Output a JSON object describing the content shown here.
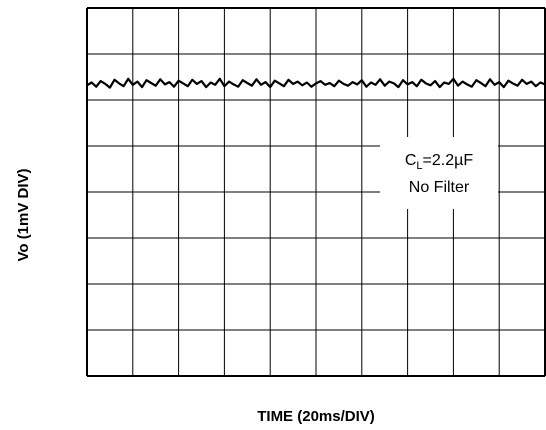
{
  "chart_data": {
    "type": "line",
    "title": "",
    "xlabel": "TIME (20ms/DIV)",
    "ylabel": "Vo (1mV DIV)",
    "x_divisions": 10,
    "y_divisions": 8,
    "xlim": [
      0,
      10
    ],
    "ylim": [
      0,
      8
    ],
    "grid": true,
    "annotation": {
      "line1_prefix": "C",
      "line1_sub": "L",
      "line1_value": "=2.2µF",
      "line2": "No Filter"
    },
    "series": [
      {
        "x": [
          0,
          0.1,
          0.2,
          0.3,
          0.4,
          0.5,
          0.6,
          0.7,
          0.8,
          0.9,
          1.0,
          1.1,
          1.2,
          1.3,
          1.4,
          1.5,
          1.6,
          1.7,
          1.8,
          1.9,
          2.0,
          2.1,
          2.2,
          2.3,
          2.4,
          2.5,
          2.6,
          2.7,
          2.8,
          2.9,
          3.0,
          3.1,
          3.2,
          3.3,
          3.4,
          3.5,
          3.6,
          3.7,
          3.8,
          3.9,
          4.0,
          4.1,
          4.2,
          4.3,
          4.4,
          4.5,
          4.6,
          4.7,
          4.8,
          4.9,
          5.0,
          5.1,
          5.2,
          5.3,
          5.4,
          5.5,
          5.6,
          5.7,
          5.8,
          5.9,
          6.0,
          6.1,
          6.2,
          6.3,
          6.4,
          6.5,
          6.6,
          6.7,
          6.8,
          6.9,
          7.0,
          7.1,
          7.2,
          7.3,
          7.4,
          7.5,
          7.6,
          7.7,
          7.8,
          7.9,
          8.0,
          8.1,
          8.2,
          8.3,
          8.4,
          8.5,
          8.6,
          8.7,
          8.8,
          8.9,
          9.0,
          9.1,
          9.2,
          9.3,
          9.4,
          9.5,
          9.6,
          9.7,
          9.8,
          9.9,
          10.0
        ],
        "values": [
          6.32,
          6.38,
          6.29,
          6.41,
          6.35,
          6.27,
          6.44,
          6.36,
          6.3,
          6.46,
          6.33,
          6.4,
          6.28,
          6.43,
          6.37,
          6.31,
          6.45,
          6.34,
          6.39,
          6.29,
          6.42,
          6.36,
          6.3,
          6.44,
          6.35,
          6.41,
          6.28,
          6.38,
          6.33,
          6.46,
          6.3,
          6.4,
          6.34,
          6.29,
          6.43,
          6.37,
          6.31,
          6.45,
          6.33,
          6.39,
          6.28,
          6.42,
          6.36,
          6.3,
          6.44,
          6.35,
          6.4,
          6.32,
          6.38,
          6.29,
          6.36,
          6.41,
          6.33,
          6.37,
          6.3,
          6.42,
          6.35,
          6.31,
          6.39,
          6.34,
          6.43,
          6.29,
          6.38,
          6.33,
          6.45,
          6.31,
          6.4,
          6.36,
          6.28,
          6.43,
          6.34,
          6.39,
          6.3,
          6.44,
          6.36,
          6.32,
          6.41,
          6.28,
          6.38,
          6.35,
          6.46,
          6.31,
          6.4,
          6.34,
          6.29,
          6.43,
          6.37,
          6.3,
          6.45,
          6.33,
          6.39,
          6.28,
          6.42,
          6.36,
          6.31,
          6.44,
          6.35,
          6.4,
          6.3,
          6.38,
          6.34
        ]
      }
    ]
  }
}
